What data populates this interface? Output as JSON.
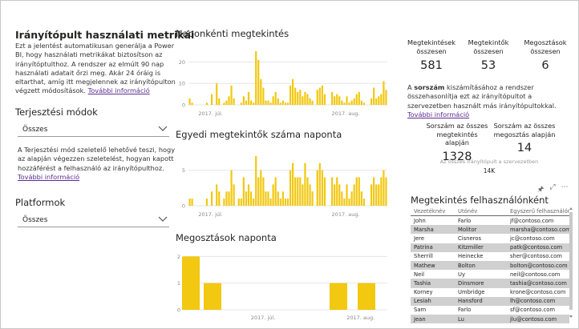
{
  "left": {
    "title": "Irányítópult használati metrikái",
    "description": "Ezt a jelentést automatikusan generálja a Power BI, hogy használati metrikákat biztosítson az irányítóptulthoz. A rendszer az elmúlt 90 nap használati adatait őrzi meg. Akár 24 óráig is eltarthat, amíg itt megjelennek az irányítópulton végzett módosítások.",
    "more_info": "További információ",
    "slicer1_title": "Terjesztési módok",
    "slicer1_value": "Összes",
    "note": "A Terjesztési mód szeletelő lehetővé teszi, hogy az alapján végezzen szeletelést, hogyan kapott hozzáférést a felhasználó az irányítópulthoz.",
    "note_link": "További információ",
    "slicer2_title": "Platformok",
    "slicer2_value": "Összes"
  },
  "charts": {
    "views_title": "Naponkénti megtekintés",
    "viewers_title": "Egyedi megtekintők száma naponta",
    "shares_title": "Megosztások naponta"
  },
  "chart_data": [
    {
      "type": "bar",
      "title": "Naponkénti megtekintés",
      "yticks": [
        "20",
        "10",
        "0"
      ],
      "ylim": [
        0,
        28
      ],
      "xticks": [
        "2017. júl.",
        "2017. aug."
      ],
      "values": [
        3,
        1,
        0,
        0,
        0,
        0,
        0,
        1,
        0,
        5,
        0,
        10,
        3,
        0,
        1,
        2,
        4,
        9,
        3,
        0,
        0,
        1,
        4,
        2,
        6,
        2,
        1,
        25,
        21,
        12,
        8,
        2,
        2,
        1,
        4,
        6,
        3,
        1,
        2,
        1,
        1,
        9,
        12,
        8,
        6,
        7,
        4,
        6,
        5,
        3,
        2,
        0,
        7,
        8,
        9,
        5,
        0,
        0,
        6,
        4,
        5,
        4,
        2,
        1,
        4,
        1,
        2,
        3,
        5,
        6,
        2,
        1,
        0,
        0,
        3,
        8,
        3,
        4,
        5,
        11,
        7
      ]
    },
    {
      "type": "bar",
      "title": "Egyedi megtekintők száma naponta",
      "yticks": [
        "5",
        "0"
      ],
      "ylim": [
        0,
        8
      ],
      "xticks": [
        "2017. júl.",
        "2017. aug."
      ],
      "values": [
        1,
        1,
        0,
        0,
        0,
        0,
        0,
        1,
        0,
        2,
        0,
        3,
        2,
        0,
        1,
        2,
        2,
        5,
        3,
        0,
        1,
        1,
        4,
        2,
        3,
        2,
        1,
        7,
        4,
        5,
        4,
        2,
        2,
        1,
        3,
        4,
        2,
        1,
        2,
        1,
        1,
        5,
        6,
        4,
        4,
        4,
        3,
        6,
        4,
        3,
        2,
        0,
        5,
        6,
        5,
        4,
        0,
        0,
        4,
        3,
        4,
        3,
        2,
        1,
        3,
        1,
        2,
        3,
        4,
        4,
        2,
        1,
        0,
        0,
        3,
        4,
        3,
        3,
        4,
        5,
        4
      ]
    },
    {
      "type": "bar",
      "title": "Megosztások naponta",
      "yticks": [
        "2",
        "1",
        "0"
      ],
      "ylim": [
        0,
        2.4
      ],
      "xticks": [
        "2017. júl.",
        "2017. aug."
      ],
      "values": [
        2,
        1,
        0,
        0,
        0,
        0,
        0,
        0,
        0,
        0,
        0,
        0,
        0,
        1,
        1
      ]
    }
  ],
  "kpis": [
    {
      "label": "Megtekintések összesen",
      "value": "581"
    },
    {
      "label": "Megtekintők összesen",
      "value": "53"
    },
    {
      "label": "Megosztások összesen",
      "value": "6"
    }
  ],
  "rank_text_bold": "sorszám",
  "rank_text_pre": "A ",
  "rank_text_post": " kiszámításához a rendszer összehasonlítja ezt az irányítópultot a szervezetben használt más irányítópultokkal.",
  "rank_link": "További információ",
  "ranks": [
    {
      "label": "Sorszám az összes megtekintés alapján",
      "value": "1328"
    },
    {
      "label": "Sorszám az összes megosztás alapján",
      "value": "14"
    }
  ],
  "org_label": "Az összes irányítópult a szervezetben",
  "org_value": "14K",
  "table": {
    "title": "Megtekintés felhasználónként",
    "headers": [
      "Vezetéknév",
      "Utónév",
      "Egyszerű felhasználónév"
    ],
    "rows": [
      [
        "John",
        "Farlo",
        "jf@contoso.com"
      ],
      [
        "Marsha",
        "Molitor",
        "marsha@contoso.com"
      ],
      [
        "Jere",
        "Cisneros",
        "jc@contoso.com"
      ],
      [
        "Patrina",
        "Kitzmiller",
        "patk@contoso.com"
      ],
      [
        "Sherrill",
        "Heinecke",
        "sher@contoso.com"
      ],
      [
        "Mathew",
        "Bolton",
        "bolton@contoso.com"
      ],
      [
        "Neil",
        "Uy",
        "neil@contoso.com"
      ],
      [
        "Tashia",
        "Dinsmore",
        "tashia@contoso.com"
      ],
      [
        "Korney",
        "Umbridge",
        "krone@contoso.com"
      ],
      [
        "Lesiah",
        "Hansford",
        "lh@contoso.com"
      ],
      [
        "Sam",
        "Farlo",
        "sf@contoso.com"
      ],
      [
        "Jean",
        "Lu",
        "jlu@contoso.com"
      ]
    ]
  },
  "colors": {
    "bar": "#f2c811",
    "grid": "#e6e6e6",
    "axis_text": "#888888",
    "link": "#5c2d91"
  }
}
